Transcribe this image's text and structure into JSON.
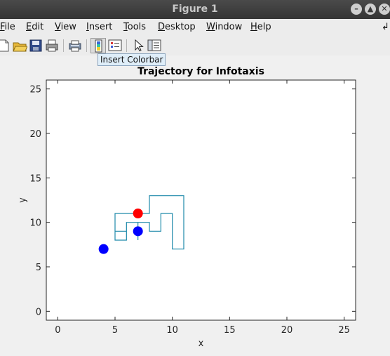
{
  "window": {
    "title": "Figure 1"
  },
  "window_buttons": [
    {
      "name": "minimize-button",
      "glyph": "–"
    },
    {
      "name": "maximize-button",
      "glyph": "▲"
    },
    {
      "name": "close-button",
      "glyph": "✕"
    }
  ],
  "menu": [
    {
      "name": "menu-file",
      "key": "F",
      "rest": "ile"
    },
    {
      "name": "menu-edit",
      "key": "E",
      "rest": "dit"
    },
    {
      "name": "menu-view",
      "key": "V",
      "rest": "iew"
    },
    {
      "name": "menu-insert",
      "key": "I",
      "rest": "nsert"
    },
    {
      "name": "menu-tools",
      "key": "T",
      "rest": "ools"
    },
    {
      "name": "menu-desktop",
      "key": "D",
      "rest": "esktop"
    },
    {
      "name": "menu-window",
      "key": "W",
      "rest": "indow"
    },
    {
      "name": "menu-help",
      "key": "H",
      "rest": "elp"
    }
  ],
  "menu_overflow_glyph": "↲",
  "toolbar": {
    "tooltip": "Insert Colorbar",
    "buttons": [
      "new-figure-icon",
      "open-file-icon",
      "save-icon",
      "print-icon",
      "print-preview-icon",
      "insert-colorbar-icon",
      "insert-legend-icon",
      "edit-pointer-icon",
      "property-inspector-icon"
    ]
  },
  "chart_data": {
    "type": "line",
    "title": "Trajectory for Infotaxis",
    "xlabel": "x",
    "ylabel": "y",
    "xlim": [
      -1,
      26
    ],
    "ylim": [
      -1,
      26
    ],
    "xticks": [
      0,
      5,
      10,
      15,
      20,
      25
    ],
    "yticks": [
      0,
      5,
      10,
      15,
      20,
      25
    ],
    "grid": false,
    "series": [
      {
        "color": "#1f8aab",
        "x": [
          7,
          7,
          6,
          6,
          5,
          5,
          8,
          8,
          11,
          11,
          10,
          10,
          9,
          9,
          8,
          8,
          6,
          6,
          5,
          5,
          7
        ],
        "y": [
          8,
          10,
          10,
          8,
          8,
          11,
          11,
          13,
          13,
          7,
          7,
          11,
          11,
          9,
          9,
          10,
          10,
          9,
          9,
          11,
          11
        ]
      }
    ],
    "markers": [
      {
        "x": 4,
        "y": 7,
        "color": "#0000ff"
      },
      {
        "x": 7,
        "y": 9,
        "color": "#0000ff"
      },
      {
        "x": 7,
        "y": 11,
        "color": "#ff0000"
      }
    ]
  }
}
